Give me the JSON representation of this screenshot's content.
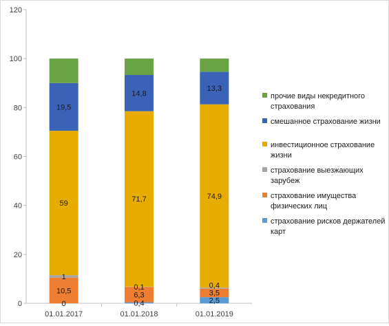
{
  "chart_data": {
    "type": "bar",
    "stacked": true,
    "categories": [
      "01.01.2017",
      "01.01.2018",
      "01.01.2019"
    ],
    "ylim": [
      0,
      120
    ],
    "yticks": [
      "0",
      "20",
      "40",
      "60",
      "80",
      "100",
      "120"
    ],
    "grid": false,
    "legend_position": "right",
    "series": [
      {
        "name": "страхование рисков держателей карт",
        "legend_lines": [
          "страхование рисков держателей",
          "карт"
        ],
        "color": "#5b9bd5",
        "values": [
          0,
          0.4,
          2.5
        ],
        "labels": [
          "0",
          "0,4",
          "2,5"
        ]
      },
      {
        "name": "страхование имущества физических лиц",
        "legend_lines": [
          "страхование имущества",
          "физических лиц"
        ],
        "color": "#ed7d31",
        "values": [
          10.5,
          6.3,
          3.5
        ],
        "labels": [
          "10,5",
          "6,3",
          "3,5"
        ]
      },
      {
        "name": "страхование выезжающих зарубеж",
        "legend_lines": [
          "страхование выезжающих",
          "зарубеж"
        ],
        "color": "#a5a5a5",
        "values": [
          1,
          0.1,
          0.4
        ],
        "labels": [
          "1",
          "0,1",
          "0,4"
        ]
      },
      {
        "name": "инвестиционное страхование жизни",
        "legend_lines": [
          "инвестиционное страхование",
          "жизни"
        ],
        "color": "#e6ac00",
        "values": [
          59,
          71.7,
          74.9
        ],
        "labels": [
          "59",
          "71,7",
          "74,9"
        ]
      },
      {
        "name": "смешанное страхование жизни",
        "legend_lines": [
          "смешанное страхование жизни"
        ],
        "color": "#3a63b8",
        "values": [
          19.5,
          14.8,
          13.3
        ],
        "labels": [
          "19,5",
          "14,8",
          "13,3"
        ]
      },
      {
        "name": "прочие виды некредитного страхования",
        "legend_lines": [
          "прочие виды некредитного",
          "страхования"
        ],
        "color": "#6aa343",
        "values": [
          10,
          6.7,
          5.4
        ],
        "labels": [
          "",
          "",
          ""
        ]
      }
    ]
  }
}
